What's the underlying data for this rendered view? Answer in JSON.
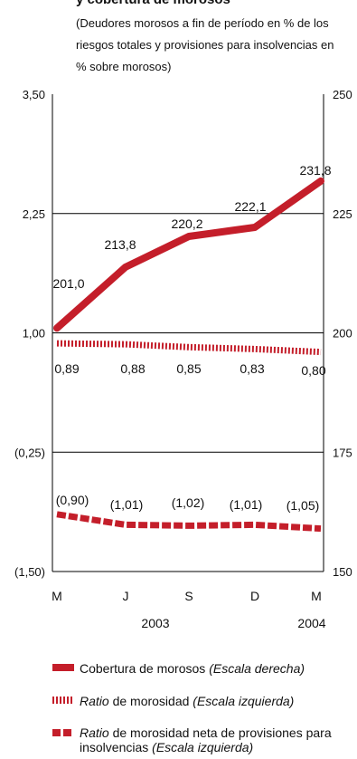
{
  "title": "y cobertura de morosos",
  "subtitle": "(Deudores morosos a fin de período en % de los riesgos totales y provisiones para insolvencias en % sobre morosos)",
  "colors": {
    "series": "#c41e2a",
    "axis": "#000000"
  },
  "chart_data": {
    "type": "line",
    "x": [
      "M",
      "J",
      "S",
      "D",
      "M"
    ],
    "x_group_labels": [
      "2003",
      "2004"
    ],
    "left_axis": {
      "ticks": [
        "3,50",
        "2,25",
        "1,00",
        "(0,25)",
        "(1,50)"
      ],
      "ylim": [
        -1.5,
        3.5
      ]
    },
    "right_axis": {
      "ticks": [
        "250",
        "225",
        "200",
        "175",
        "150"
      ],
      "ylim": [
        150,
        250
      ]
    },
    "grid": true,
    "legend_position": "bottom",
    "series": [
      {
        "name": "Cobertura de morosos",
        "axis": "right",
        "style": "solid",
        "values": [
          201.0,
          213.8,
          220.2,
          222.1,
          231.8
        ],
        "labels": [
          "201,0",
          "213,8",
          "220,2",
          "222,1",
          "231,8"
        ]
      },
      {
        "name": "Ratio de morosidad",
        "axis": "left",
        "style": "dotted",
        "values": [
          0.89,
          0.88,
          0.85,
          0.83,
          0.8
        ],
        "labels": [
          "0,89",
          "0,88",
          "0,85",
          "0,83",
          "0,80"
        ]
      },
      {
        "name": "Ratio de morosidad neta de provisiones para insolvencias",
        "axis": "left",
        "style": "dashed",
        "values": [
          -0.9,
          -1.01,
          -1.02,
          -1.01,
          -1.05
        ],
        "labels": [
          "(0,90)",
          "(1,01)",
          "(1,02)",
          "(1,01)",
          "(1,05)"
        ]
      }
    ]
  },
  "legend": [
    {
      "prefix": "",
      "italic": "",
      "text": "Cobertura de morosos ",
      "scale": "(Escala derecha)"
    },
    {
      "prefix": "",
      "italic": "Ratio",
      "text": " de morosidad ",
      "scale": "(Escala izquierda)"
    },
    {
      "prefix": "",
      "italic": "Ratio",
      "text": " de morosidad neta de provisiones para insolvencias ",
      "scale": "(Escala izquierda)"
    }
  ]
}
